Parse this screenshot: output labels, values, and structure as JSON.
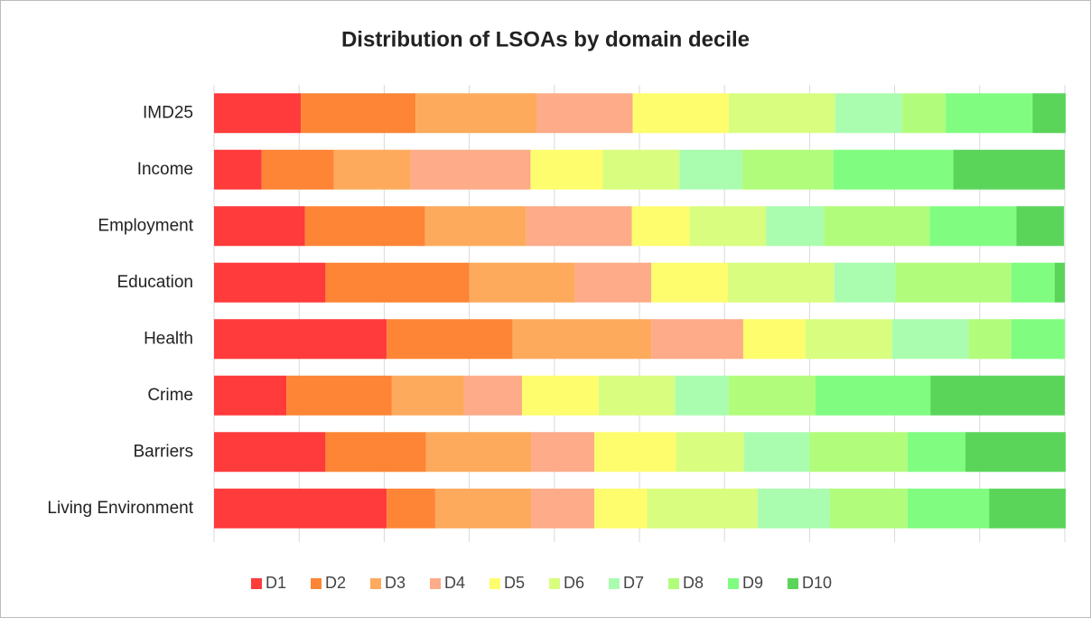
{
  "chart_data": {
    "type": "stacked-barh",
    "title": "Distribution of LSOAs by domain decile",
    "categories": [
      "IMD25",
      "Income",
      "Employment",
      "Education",
      "Health",
      "Crime",
      "Barriers",
      "Living Environment"
    ],
    "xlim": [
      0,
      100
    ],
    "xticks": [
      0,
      10,
      20,
      30,
      40,
      50,
      60,
      70,
      80,
      90,
      100
    ],
    "grid": true,
    "legend": "bottom",
    "series": [
      {
        "name": "D1",
        "color": "#ff3b3b",
        "values": [
          10.2,
          5.6,
          10.7,
          13.1,
          20.3,
          8.5,
          13.1,
          20.3
        ]
      },
      {
        "name": "D2",
        "color": "#fd8535",
        "values": [
          13.5,
          8.5,
          14.1,
          16.9,
          14.8,
          12.4,
          11.8,
          5.7
        ]
      },
      {
        "name": "D3",
        "color": "#fdaa5c",
        "values": [
          14.2,
          9,
          11.9,
          12.4,
          16.3,
          8.5,
          12.4,
          11.3
        ]
      },
      {
        "name": "D4",
        "color": "#fdab88",
        "values": [
          11.3,
          14.1,
          12.4,
          9,
          10.8,
          6.8,
          7.4,
          7.4
        ]
      },
      {
        "name": "D5",
        "color": "#fdfd6e",
        "values": [
          11.3,
          8.5,
          6.8,
          9,
          7.3,
          9,
          9.6,
          6.2
        ]
      },
      {
        "name": "D6",
        "color": "#d9fd7f",
        "values": [
          12.5,
          9,
          9,
          12.5,
          10.2,
          9,
          8,
          13
        ]
      },
      {
        "name": "D7",
        "color": "#aafdaf",
        "values": [
          7.9,
          7.4,
          6.8,
          7.2,
          9,
          6.3,
          7.7,
          8.5
        ]
      },
      {
        "name": "D8",
        "color": "#b1fd7b",
        "values": [
          5.1,
          10.7,
          12.4,
          13.6,
          5,
          10.2,
          11.5,
          9.1
        ]
      },
      {
        "name": "D9",
        "color": "#80fd80",
        "values": [
          10.2,
          14.1,
          10.2,
          5.1,
          6.3,
          13.5,
          6.8,
          9.6
        ]
      },
      {
        "name": "D10",
        "color": "#5ad55a",
        "values": [
          3.9,
          13.1,
          5.6,
          1.2,
          0,
          15.8,
          11.8,
          9
        ]
      }
    ]
  }
}
